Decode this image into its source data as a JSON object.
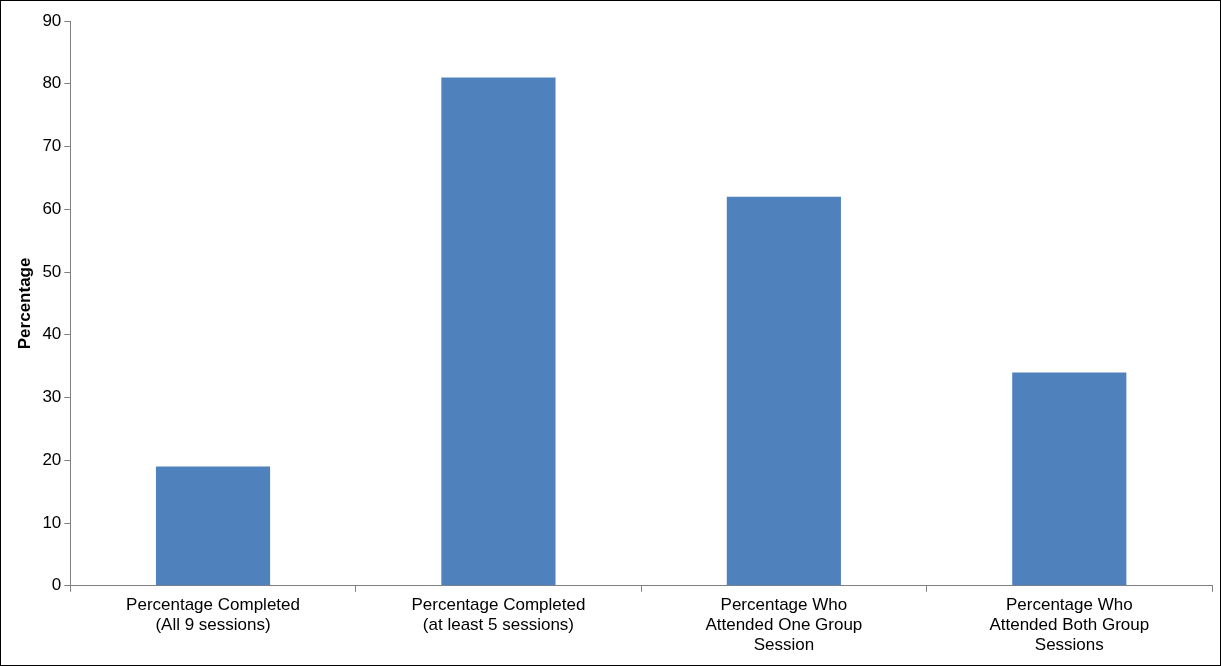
{
  "chart_data": {
    "type": "bar",
    "ylabel": "Percentage",
    "categories": [
      "Percentage Completed (All 9 sessions)",
      "Percentage Completed (at least 5 sessions)",
      "Percentage Who Attended One Group Session",
      "Percentage Who Attended Both Group Sessions"
    ],
    "values": [
      19,
      81,
      62,
      34
    ],
    "color": "#4f81bd",
    "ylim": [
      0,
      90
    ],
    "yticks": [
      0,
      10,
      20,
      30,
      40,
      50,
      60,
      70,
      80,
      90
    ],
    "grid": false,
    "legend": false
  }
}
